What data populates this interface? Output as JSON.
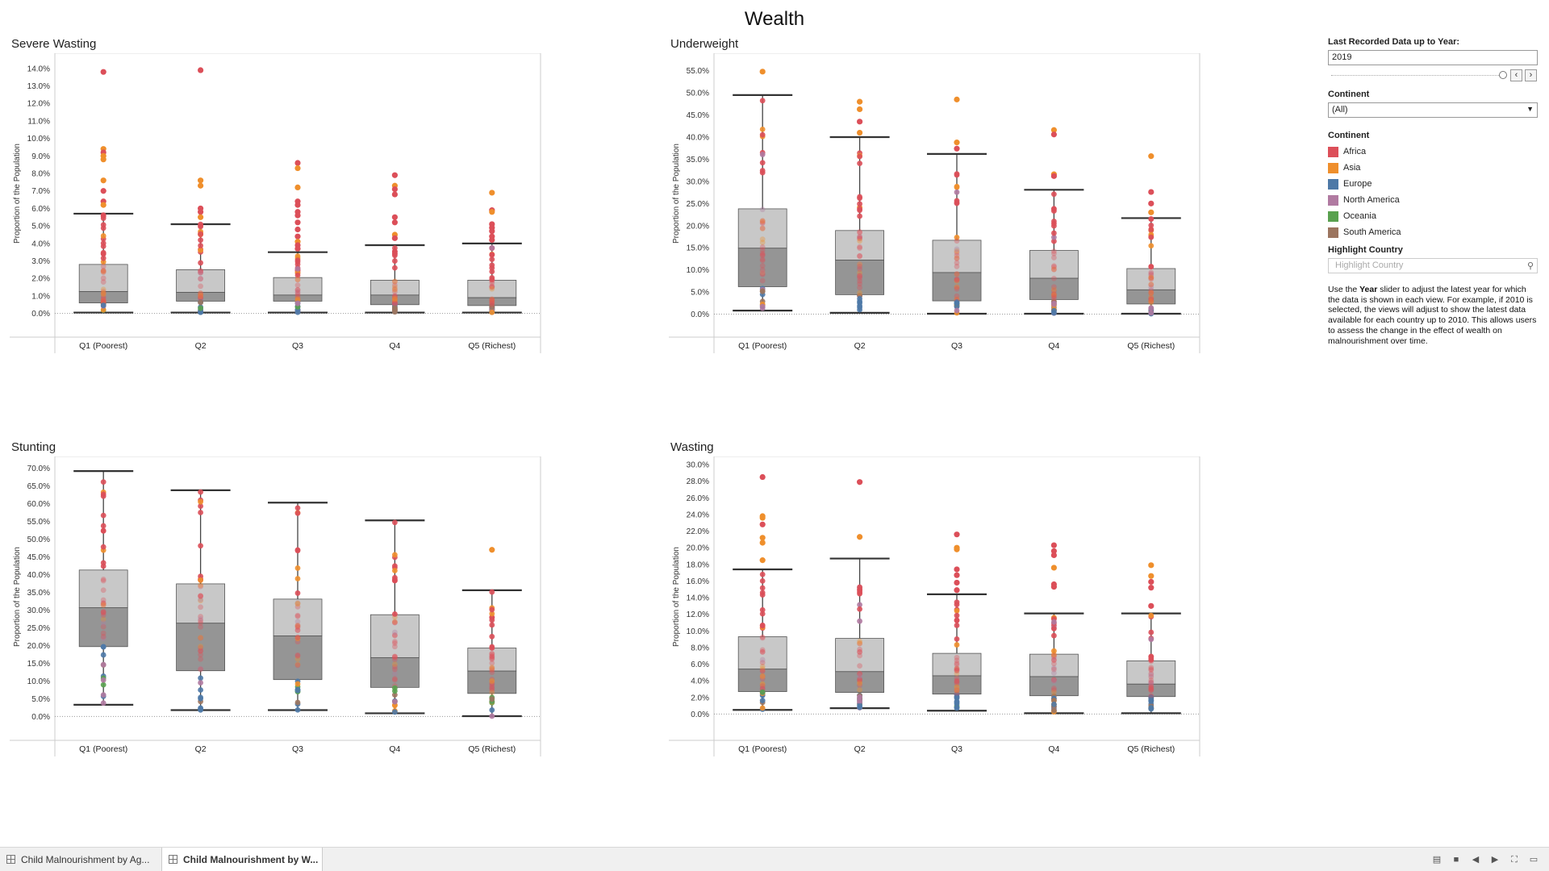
{
  "dashboard": {
    "title": "Wealth"
  },
  "colors": {
    "Africa": "#dc4f59",
    "Asia": "#ef8f2c",
    "Europe": "#4e79a7",
    "North America": "#b07aa1",
    "Oceania": "#59a14f",
    "South America": "#9c755f"
  },
  "sidebar": {
    "year_label": "Last Recorded Data up to Year:",
    "year_value": "2019",
    "continent_filter_label": "Continent",
    "continent_filter_value": "(All)",
    "legend_title": "Continent",
    "legend": [
      {
        "name": "Africa",
        "color": "#dc4f59"
      },
      {
        "name": "Asia",
        "color": "#ef8f2c"
      },
      {
        "name": "Europe",
        "color": "#4e79a7"
      },
      {
        "name": "North America",
        "color": "#b07aa1"
      },
      {
        "name": "Oceania",
        "color": "#59a14f"
      },
      {
        "name": "South America",
        "color": "#9c755f"
      }
    ],
    "highlight_label": "Highlight Country",
    "highlight_placeholder": "Highlight Country",
    "desc_before": "Use the ",
    "desc_bold": "Year",
    "desc_after": " slider to adjust the latest year for which the data is shown in each view. For example, if 2010 is selected, the views will adjust to show the latest data available for each country up to 2010. This allows users to assess the change in the effect of wealth on malnourishment over time."
  },
  "tabs": [
    {
      "label": "Child Malnourishment by Ag...",
      "active": false
    },
    {
      "label": "Child Malnourishment by W...",
      "active": true
    }
  ],
  "chart_data": [
    {
      "type": "box",
      "title": "Severe Wasting",
      "ylabel": "Proportion of the Population",
      "categories": [
        "Q1 (Poorest)",
        "Q2",
        "Q3",
        "Q4",
        "Q5 (Richest)"
      ],
      "ylim": [
        -0.8,
        14.5
      ],
      "yticks": [
        0,
        1,
        2,
        3,
        4,
        5,
        6,
        7,
        8,
        9,
        10,
        11,
        12,
        13,
        14
      ],
      "boxes": [
        {
          "min": 0.05,
          "q1": 0.6,
          "median": 1.25,
          "q3": 2.8,
          "max": 5.7,
          "outliers": [
            [
              13.8,
              "Africa"
            ],
            [
              9.4,
              "Asia"
            ],
            [
              9.2,
              "Africa"
            ],
            [
              9.0,
              "Asia"
            ],
            [
              8.8,
              "Asia"
            ],
            [
              7.6,
              "Asia"
            ],
            [
              7.0,
              "Africa"
            ],
            [
              6.4,
              "Africa"
            ],
            [
              6.2,
              "Asia"
            ]
          ]
        },
        {
          "min": 0.05,
          "q1": 0.7,
          "median": 1.2,
          "q3": 2.5,
          "max": 5.1,
          "outliers": [
            [
              13.9,
              "Africa"
            ],
            [
              7.6,
              "Asia"
            ],
            [
              7.3,
              "Asia"
            ],
            [
              6.0,
              "Africa"
            ],
            [
              5.8,
              "Africa"
            ],
            [
              5.5,
              "Asia"
            ]
          ]
        },
        {
          "min": 0.05,
          "q1": 0.7,
          "median": 1.05,
          "q3": 2.05,
          "max": 3.5,
          "outliers": [
            [
              8.6,
              "Africa"
            ],
            [
              8.3,
              "Asia"
            ],
            [
              7.2,
              "Asia"
            ],
            [
              6.4,
              "Africa"
            ],
            [
              6.2,
              "Africa"
            ],
            [
              5.8,
              "Africa"
            ],
            [
              5.6,
              "Africa"
            ],
            [
              5.2,
              "Africa"
            ],
            [
              4.8,
              "Africa"
            ],
            [
              4.4,
              "Africa"
            ],
            [
              4.1,
              "Asia"
            ],
            [
              3.9,
              "Africa"
            ],
            [
              3.7,
              "Africa"
            ]
          ]
        },
        {
          "min": 0.05,
          "q1": 0.5,
          "median": 1.05,
          "q3": 1.9,
          "max": 3.9,
          "outliers": [
            [
              7.9,
              "Africa"
            ],
            [
              7.3,
              "Asia"
            ],
            [
              7.1,
              "Africa"
            ],
            [
              6.8,
              "Africa"
            ],
            [
              5.5,
              "Africa"
            ],
            [
              5.2,
              "Africa"
            ],
            [
              4.5,
              "Asia"
            ],
            [
              4.3,
              "Africa"
            ]
          ]
        },
        {
          "min": 0.05,
          "q1": 0.45,
          "median": 0.9,
          "q3": 1.9,
          "max": 4.0,
          "outliers": [
            [
              6.9,
              "Asia"
            ],
            [
              5.9,
              "Africa"
            ],
            [
              5.8,
              "Asia"
            ],
            [
              5.1,
              "Africa"
            ],
            [
              4.9,
              "Africa"
            ],
            [
              4.7,
              "Africa"
            ],
            [
              4.4,
              "Africa"
            ],
            [
              4.2,
              "Africa"
            ]
          ]
        }
      ]
    },
    {
      "type": "box",
      "title": "Underweight",
      "ylabel": "Proportion of the Population",
      "categories": [
        "Q1 (Poorest)",
        "Q2",
        "Q3",
        "Q4",
        "Q5 (Richest)"
      ],
      "ylim": [
        -3,
        57.5
      ],
      "yticks": [
        0,
        5,
        10,
        15,
        20,
        25,
        30,
        35,
        40,
        45,
        50,
        55
      ],
      "boxes": [
        {
          "min": 0.8,
          "q1": 6.2,
          "median": 14.9,
          "q3": 23.8,
          "max": 49.5,
          "outliers": [
            [
              54.8,
              "Asia"
            ]
          ]
        },
        {
          "min": 0.3,
          "q1": 4.4,
          "median": 12.2,
          "q3": 18.9,
          "max": 40.0,
          "outliers": [
            [
              48.0,
              "Asia"
            ],
            [
              46.3,
              "Asia"
            ],
            [
              43.5,
              "Africa"
            ],
            [
              41.0,
              "Asia"
            ]
          ]
        },
        {
          "min": 0.1,
          "q1": 3.0,
          "median": 9.4,
          "q3": 16.7,
          "max": 36.2,
          "outliers": [
            [
              48.5,
              "Asia"
            ],
            [
              38.8,
              "Asia"
            ],
            [
              37.4,
              "Africa"
            ]
          ]
        },
        {
          "min": 0.1,
          "q1": 3.3,
          "median": 8.1,
          "q3": 14.4,
          "max": 28.1,
          "outliers": [
            [
              41.6,
              "Asia"
            ],
            [
              40.6,
              "Africa"
            ],
            [
              31.6,
              "Asia"
            ],
            [
              31.2,
              "Africa"
            ]
          ]
        },
        {
          "min": 0.1,
          "q1": 2.3,
          "median": 5.5,
          "q3": 10.3,
          "max": 21.7,
          "outliers": [
            [
              35.7,
              "Asia"
            ],
            [
              27.6,
              "Africa"
            ],
            [
              25.0,
              "Africa"
            ],
            [
              23.0,
              "Asia"
            ]
          ]
        }
      ]
    },
    {
      "type": "box",
      "title": "Stunting",
      "ylabel": "Proportion of the Population",
      "categories": [
        "Q1 (Poorest)",
        "Q2",
        "Q3",
        "Q4",
        "Q5 (Richest)"
      ],
      "ylim": [
        -4,
        71.5
      ],
      "yticks": [
        0,
        5,
        10,
        15,
        20,
        25,
        30,
        35,
        40,
        45,
        50,
        55,
        60,
        65,
        70
      ],
      "boxes": [
        {
          "min": 3.3,
          "q1": 19.7,
          "median": 30.7,
          "q3": 41.3,
          "max": 69.2,
          "outliers": []
        },
        {
          "min": 1.8,
          "q1": 12.9,
          "median": 26.3,
          "q3": 37.4,
          "max": 63.8,
          "outliers": []
        },
        {
          "min": 1.8,
          "q1": 10.4,
          "median": 22.7,
          "q3": 33.1,
          "max": 60.3,
          "outliers": []
        },
        {
          "min": 0.9,
          "q1": 8.2,
          "median": 16.6,
          "q3": 28.7,
          "max": 55.3,
          "outliers": []
        },
        {
          "min": 0.1,
          "q1": 6.5,
          "median": 12.8,
          "q3": 19.3,
          "max": 35.6,
          "outliers": [
            [
              47.0,
              "Asia"
            ]
          ]
        }
      ]
    },
    {
      "type": "box",
      "title": "Wasting",
      "ylabel": "Proportion of the Population",
      "categories": [
        "Q1 (Poorest)",
        "Q2",
        "Q3",
        "Q4",
        "Q5 (Richest)"
      ],
      "ylim": [
        -2,
        30.2
      ],
      "yticks": [
        0,
        2,
        4,
        6,
        8,
        10,
        12,
        14,
        16,
        18,
        20,
        22,
        24,
        26,
        28,
        30
      ],
      "boxes": [
        {
          "min": 0.5,
          "q1": 2.7,
          "median": 5.4,
          "q3": 9.3,
          "max": 17.4,
          "outliers": [
            [
              28.5,
              "Africa"
            ],
            [
              23.8,
              "Asia"
            ],
            [
              23.6,
              "Asia"
            ],
            [
              22.8,
              "Africa"
            ],
            [
              21.2,
              "Asia"
            ],
            [
              20.6,
              "Asia"
            ],
            [
              18.5,
              "Asia"
            ]
          ]
        },
        {
          "min": 0.7,
          "q1": 2.6,
          "median": 5.1,
          "q3": 9.1,
          "max": 18.7,
          "outliers": [
            [
              27.9,
              "Africa"
            ],
            [
              21.3,
              "Asia"
            ]
          ]
        },
        {
          "min": 0.4,
          "q1": 2.4,
          "median": 4.6,
          "q3": 7.3,
          "max": 14.4,
          "outliers": [
            [
              21.6,
              "Africa"
            ],
            [
              20.0,
              "Asia"
            ],
            [
              19.8,
              "Asia"
            ],
            [
              17.4,
              "Africa"
            ],
            [
              16.7,
              "Africa"
            ],
            [
              15.8,
              "Africa"
            ],
            [
              14.9,
              "Africa"
            ]
          ]
        },
        {
          "min": 0.1,
          "q1": 2.2,
          "median": 4.5,
          "q3": 7.2,
          "max": 12.1,
          "outliers": [
            [
              20.3,
              "Africa"
            ],
            [
              19.6,
              "Africa"
            ],
            [
              19.1,
              "Africa"
            ],
            [
              17.6,
              "Asia"
            ],
            [
              15.6,
              "Africa"
            ],
            [
              15.3,
              "Africa"
            ]
          ]
        },
        {
          "min": 0.1,
          "q1": 2.1,
          "median": 3.6,
          "q3": 6.4,
          "max": 12.1,
          "outliers": [
            [
              17.9,
              "Asia"
            ],
            [
              16.6,
              "Asia"
            ],
            [
              15.9,
              "Africa"
            ],
            [
              15.2,
              "Africa"
            ],
            [
              13.0,
              "Africa"
            ]
          ]
        }
      ]
    }
  ]
}
